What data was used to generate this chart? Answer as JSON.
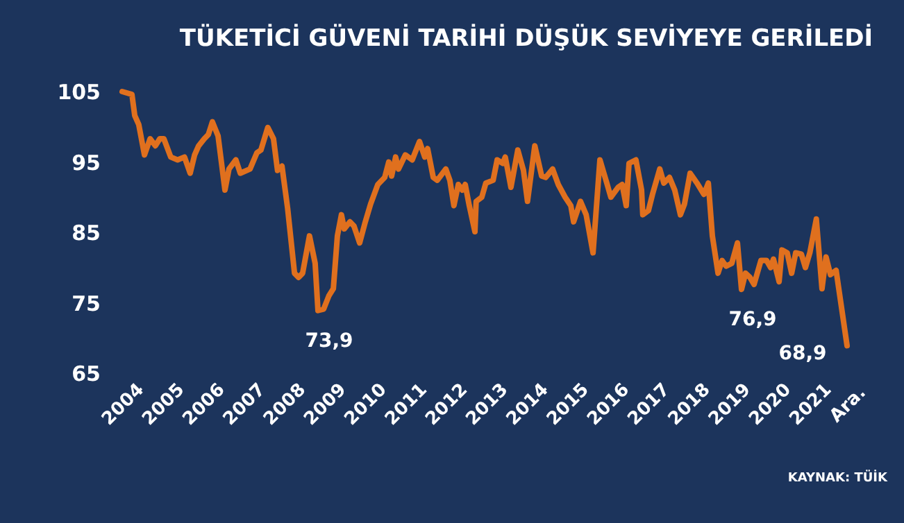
{
  "chart_data": {
    "type": "line",
    "title": "TÜKETİCİ GÜVENİ TARİHİ DÜŞÜK SEVİYEYE GERİLEDİ",
    "x": [
      2004.0,
      2004.24,
      2004.31,
      2004.41,
      2004.55,
      2004.69,
      2004.82,
      2004.93,
      2005.03,
      2005.2,
      2005.37,
      2005.54,
      2005.68,
      2005.79,
      2005.89,
      2006.03,
      2006.13,
      2006.23,
      2006.37,
      2006.54,
      2006.64,
      2006.81,
      2006.92,
      2007.16,
      2007.33,
      2007.43,
      2007.6,
      2007.74,
      2007.84,
      2007.95,
      2008.09,
      2008.26,
      2008.36,
      2008.46,
      2008.63,
      2008.77,
      2008.84,
      2008.98,
      2009.11,
      2009.22,
      2009.32,
      2009.42,
      2009.49,
      2009.63,
      2009.73,
      2009.87,
      2010.01,
      2010.14,
      2010.32,
      2010.49,
      2010.59,
      2010.66,
      2010.76,
      2010.83,
      2011.0,
      2011.17,
      2011.35,
      2011.48,
      2011.55,
      2011.69,
      2011.79,
      2012.0,
      2012.1,
      2012.2,
      2012.31,
      2012.41,
      2012.48,
      2012.58,
      2012.72,
      2012.75,
      2012.89,
      2012.99,
      2013.17,
      2013.27,
      2013.41,
      2013.47,
      2013.61,
      2013.78,
      2013.92,
      2014.02,
      2014.2,
      2014.37,
      2014.47,
      2014.64,
      2014.78,
      2014.95,
      2015.09,
      2015.16,
      2015.33,
      2015.47,
      2015.64,
      2015.81,
      2015.98,
      2016.08,
      2016.26,
      2016.36,
      2016.46,
      2016.53,
      2016.7,
      2016.84,
      2016.87,
      2017.01,
      2017.11,
      2017.29,
      2017.39,
      2017.53,
      2017.66,
      2017.8,
      2017.9,
      2018.04,
      2018.21,
      2018.38,
      2018.49,
      2018.59,
      2018.73,
      2018.83,
      2018.93,
      2019.07,
      2019.21,
      2019.31,
      2019.41,
      2019.52,
      2019.62,
      2019.79,
      2019.93,
      2020.03,
      2020.1,
      2020.24,
      2020.31,
      2020.44,
      2020.55,
      2020.65,
      2020.79,
      2020.89,
      2021.0,
      2021.16,
      2021.3,
      2021.4,
      2021.51,
      2021.65,
      2021.71,
      2021.92
    ],
    "series": [
      {
        "color": "#e0701e",
        "values": [
          105.0,
          104.6,
          101.6,
          100.3,
          96.0,
          98.3,
          97.3,
          98.3,
          98.3,
          95.7,
          95.3,
          95.7,
          93.4,
          96.0,
          97.3,
          98.3,
          98.9,
          100.7,
          98.7,
          91.0,
          94.0,
          95.3,
          93.4,
          94.0,
          96.3,
          96.7,
          99.9,
          98.3,
          93.8,
          94.4,
          88.4,
          79.2,
          78.6,
          79.2,
          84.5,
          80.6,
          73.9,
          74.1,
          76.0,
          77.0,
          84.5,
          87.5,
          85.5,
          86.5,
          85.9,
          83.5,
          86.5,
          89.0,
          91.8,
          92.8,
          95.0,
          93.0,
          95.7,
          94.0,
          96.0,
          95.3,
          97.9,
          95.7,
          96.9,
          92.8,
          92.4,
          94.0,
          92.4,
          88.8,
          91.8,
          91.0,
          91.8,
          88.8,
          85.1,
          89.4,
          90.0,
          92.0,
          92.4,
          95.3,
          94.8,
          95.7,
          91.4,
          96.7,
          93.8,
          89.4,
          97.3,
          93.0,
          92.8,
          94.0,
          91.8,
          90.0,
          88.8,
          86.5,
          89.4,
          87.5,
          82.1,
          95.3,
          92.0,
          90.0,
          91.4,
          91.8,
          88.8,
          94.8,
          95.3,
          91.0,
          87.5,
          88.1,
          90.4,
          94.0,
          92.0,
          92.8,
          91.0,
          87.5,
          89.0,
          93.4,
          92.0,
          90.4,
          92.0,
          84.5,
          79.2,
          81.0,
          80.2,
          80.6,
          83.5,
          76.9,
          79.2,
          78.6,
          77.6,
          81.0,
          81.0,
          80.0,
          81.2,
          78.0,
          82.5,
          82.1,
          79.2,
          82.1,
          81.9,
          80.0,
          82.1,
          86.9,
          77.0,
          81.5,
          79.0,
          79.6,
          77.2,
          68.9
        ]
      }
    ],
    "xlim": [
      2004,
      2021.92
    ],
    "xticks": [
      2004,
      2005,
      2006,
      2007,
      2008,
      2009,
      2010,
      2011,
      2012,
      2013,
      2014,
      2015,
      2016,
      2017,
      2018,
      2019,
      2020,
      2021,
      {
        "value": 2021.92,
        "label": "Ara."
      }
    ],
    "ylim": [
      65,
      105
    ],
    "yticks": [
      65,
      75,
      85,
      95,
      105
    ],
    "annotations": [
      {
        "text": "73,9",
        "x": 2008.84,
        "y": 73.9
      },
      {
        "text": "76,9",
        "x": 2019.31,
        "y": 76.9
      },
      {
        "text": "68,9",
        "x": 2021.92,
        "y": 68.9
      },
      "KAYNAK: TÜİK"
    ]
  }
}
